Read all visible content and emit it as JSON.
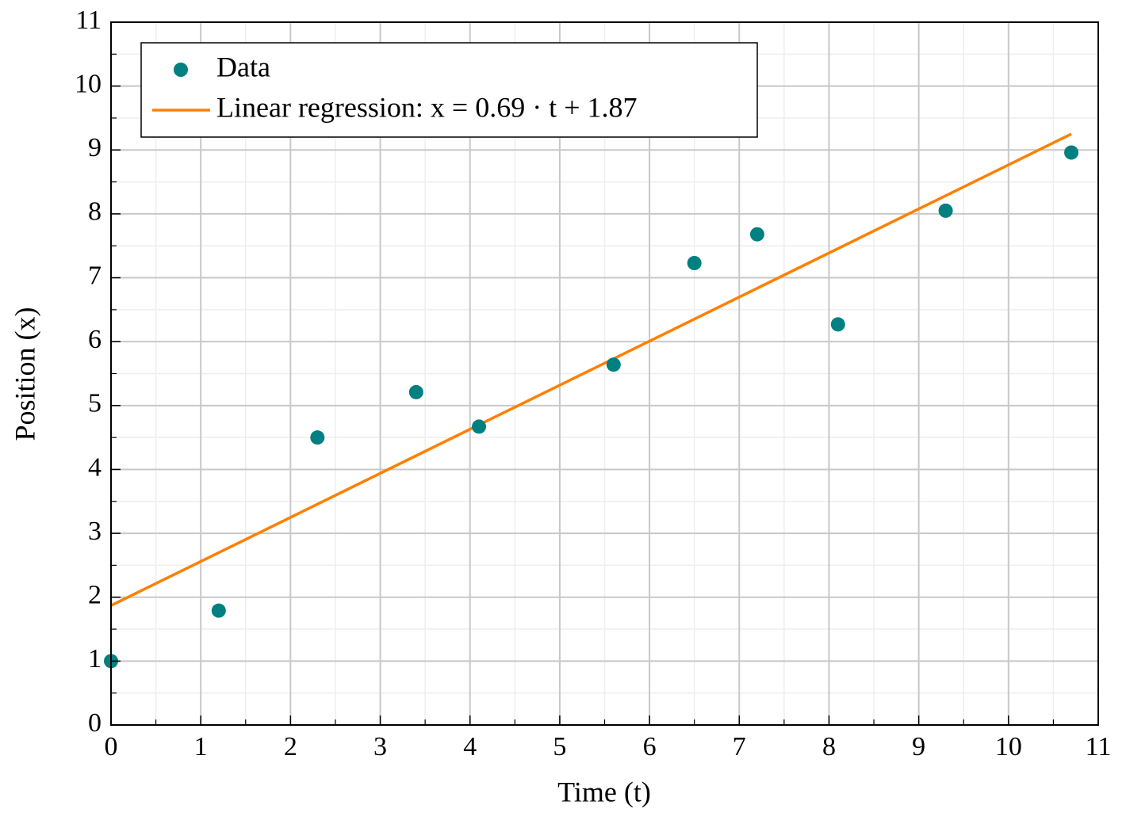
{
  "chart_data": {
    "type": "scatter",
    "x_label": "Time (t)",
    "y_label": "Position (x)",
    "xlim": [
      0,
      11
    ],
    "ylim": [
      0,
      11
    ],
    "xticks": [
      0,
      1,
      2,
      3,
      4,
      5,
      6,
      7,
      8,
      9,
      10,
      11
    ],
    "yticks": [
      0,
      1,
      2,
      3,
      4,
      5,
      6,
      7,
      8,
      9,
      10,
      11
    ],
    "grid": true,
    "minor_grid": true,
    "legend_position": "upper left",
    "series": [
      {
        "name": "Data",
        "type": "scatter",
        "color": "#008080",
        "x": [
          0,
          1.2,
          2.3,
          3.4,
          4.1,
          5.6,
          6.5,
          7.2,
          8.1,
          9.3,
          10.7
        ],
        "values": [
          1.0,
          1.79,
          4.5,
          5.21,
          4.67,
          5.64,
          7.23,
          7.68,
          6.27,
          8.05,
          8.96
        ]
      },
      {
        "name": "Linear regression: x = 0.69 · t + 1.87",
        "type": "line",
        "color": "#ff8000",
        "x": [
          0,
          10.7
        ],
        "values": [
          1.87,
          9.25
        ]
      }
    ]
  }
}
